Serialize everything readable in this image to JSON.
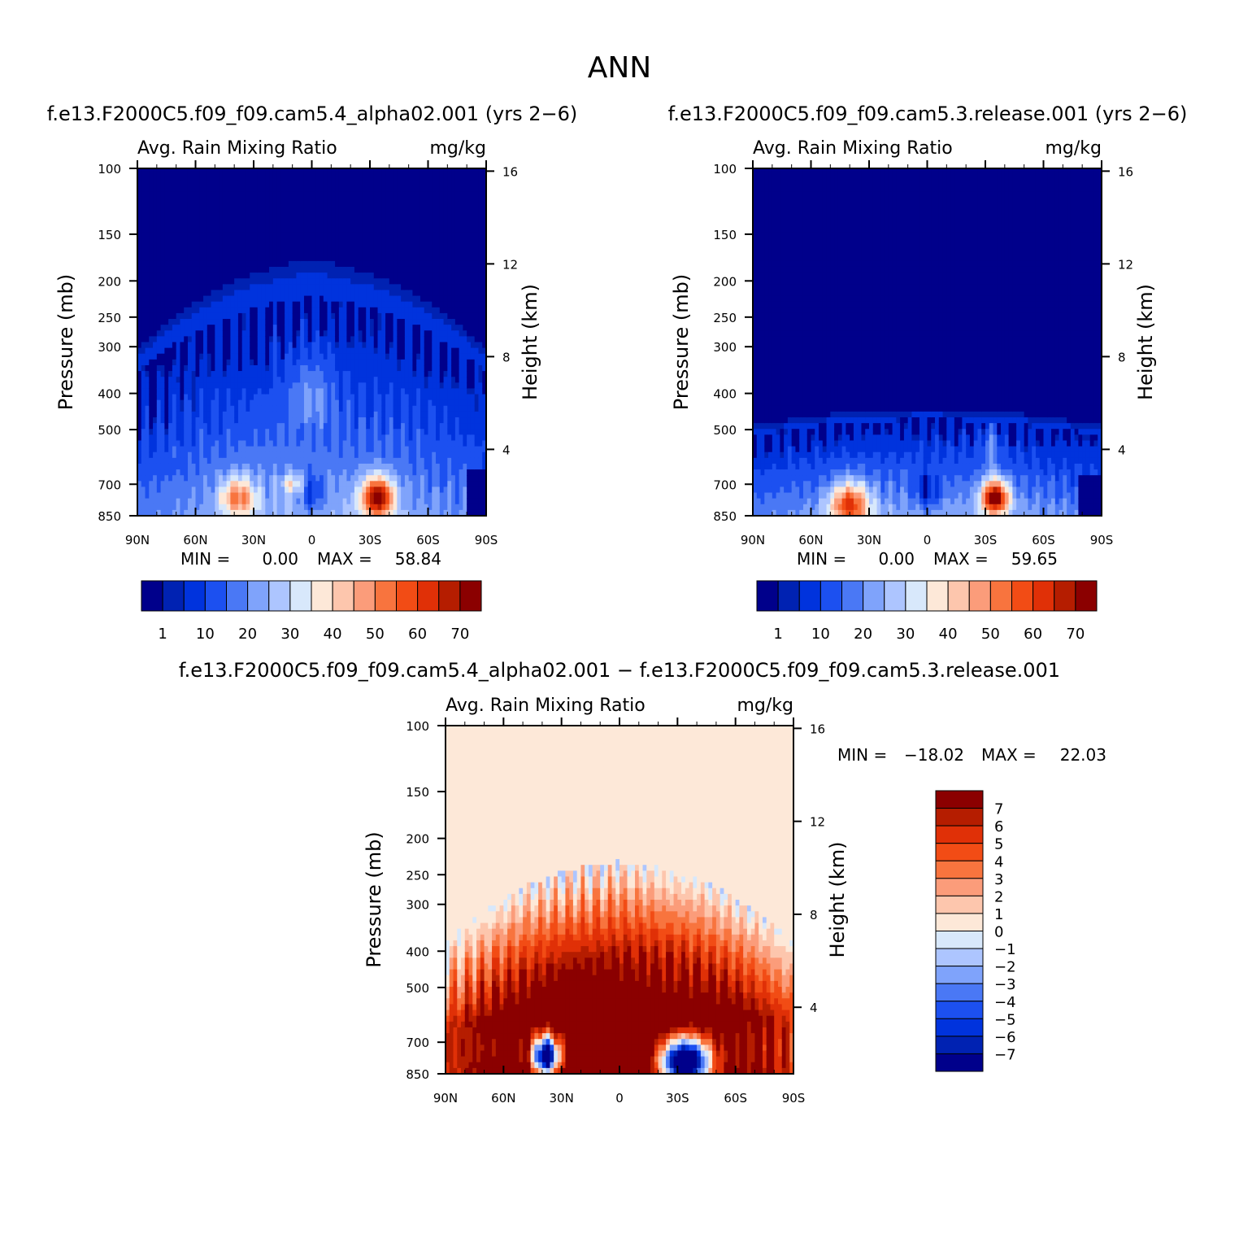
{
  "figure_title": "ANN",
  "colors": {
    "seq": [
      "#00008b",
      "#0022b2",
      "#0033dd",
      "#1c50f0",
      "#4a78f5",
      "#7fa3fb",
      "#adc5ff",
      "#d8e8fb",
      "#fde8d8",
      "#fdc6ad",
      "#fb9c7a",
      "#f8743e",
      "#f24c15",
      "#e03007",
      "#b51d00",
      "#8b0000"
    ],
    "div": [
      "#8b0000",
      "#b51d00",
      "#e03007",
      "#f24c15",
      "#f8743e",
      "#fb9c7a",
      "#fdc6ad",
      "#fde8d8",
      "#d8e8fb",
      "#adc5ff",
      "#7fa3fb",
      "#4a78f5",
      "#1c50f0",
      "#0033dd",
      "#0022b2",
      "#00008b"
    ]
  },
  "chart_data": [
    {
      "type": "heatmap",
      "id": "alpha",
      "title": "f.e13.F2000C5.f09_f09.cam5.4_alpha02.001 (yrs 2−6)",
      "left_label": "Avg. Rain Mixing Ratio",
      "right_label": "mg/kg",
      "ylabel": "Pressure (mb)",
      "y2label": "Height (km)",
      "x_ticks": [
        "90N",
        "60N",
        "30N",
        "0",
        "30S",
        "60S",
        "90S"
      ],
      "y_ticks": [
        "100",
        "150",
        "200",
        "250",
        "300",
        "400",
        "500",
        "700",
        "850"
      ],
      "y2_ticks": [
        "16",
        "12",
        "8",
        "4"
      ],
      "stats": {
        "min_label": "MIN =",
        "min": "0.00",
        "max_label": "MAX =",
        "max": "58.84"
      },
      "colorbar_labels": [
        "1",
        "10",
        "20",
        "30",
        "40",
        "50",
        "60",
        "70"
      ],
      "ylim": [
        850,
        100
      ],
      "xlim": [
        "90N",
        "90S"
      ]
    },
    {
      "type": "heatmap",
      "id": "release",
      "title": "f.e13.F2000C5.f09_f09.cam5.3.release.001 (yrs 2−6)",
      "left_label": "Avg. Rain Mixing Ratio",
      "right_label": "mg/kg",
      "ylabel": "Pressure (mb)",
      "y2label": "Height (km)",
      "x_ticks": [
        "90N",
        "60N",
        "30N",
        "0",
        "30S",
        "60S",
        "90S"
      ],
      "y_ticks": [
        "100",
        "150",
        "200",
        "250",
        "300",
        "400",
        "500",
        "700",
        "850"
      ],
      "y2_ticks": [
        "16",
        "12",
        "8",
        "4"
      ],
      "stats": {
        "min_label": "MIN =",
        "min": "0.00",
        "max_label": "MAX =",
        "max": "59.65"
      },
      "colorbar_labels": [
        "1",
        "10",
        "20",
        "30",
        "40",
        "50",
        "60",
        "70"
      ],
      "ylim": [
        850,
        100
      ],
      "xlim": [
        "90N",
        "90S"
      ]
    },
    {
      "type": "heatmap",
      "id": "diff",
      "title": "f.e13.F2000C5.f09_f09.cam5.4_alpha02.001 − f.e13.F2000C5.f09_f09.cam5.3.release.001",
      "left_label": "Avg. Rain Mixing Ratio",
      "right_label": "mg/kg",
      "ylabel": "Pressure (mb)",
      "y2label": "Height (km)",
      "x_ticks": [
        "90N",
        "60N",
        "30N",
        "0",
        "30S",
        "60S",
        "90S"
      ],
      "y_ticks": [
        "100",
        "150",
        "200",
        "250",
        "300",
        "400",
        "500",
        "700",
        "850"
      ],
      "y2_ticks": [
        "16",
        "12",
        "8",
        "4"
      ],
      "stats": {
        "min_label": "MIN =",
        "min": "−18.02",
        "max_label": "MAX =",
        "max": "22.03"
      },
      "colorbar_labels": [
        "7",
        "6",
        "5",
        "4",
        "3",
        "2",
        "1",
        "0",
        "−1",
        "−2",
        "−3",
        "−4",
        "−5",
        "−6",
        "−7"
      ],
      "ylim": [
        850,
        100
      ],
      "xlim": [
        "90N",
        "90S"
      ]
    }
  ]
}
